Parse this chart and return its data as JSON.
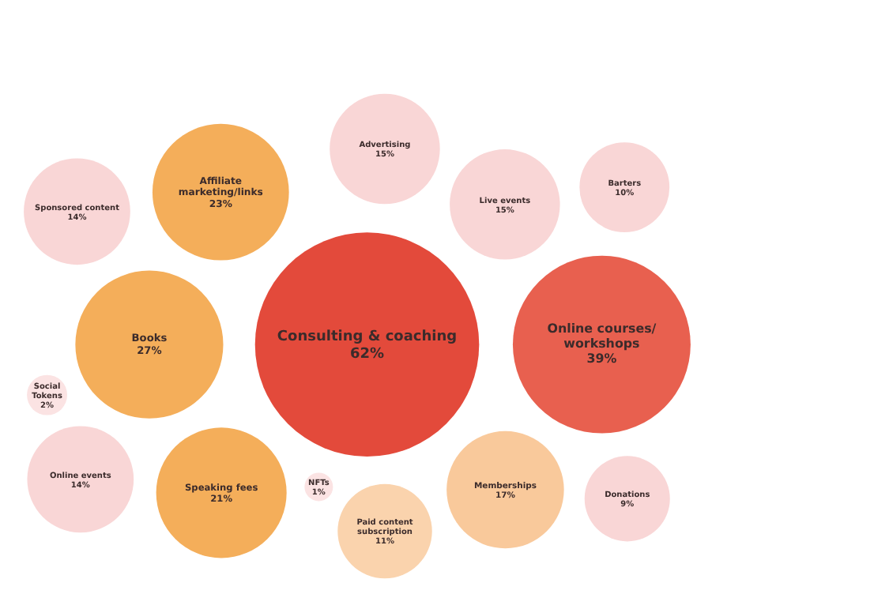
{
  "chart_data": {
    "type": "other",
    "categories": [
      "Consulting & coaching",
      "Online courses/ workshops",
      "Books",
      "Affiliate marketing/links",
      "Speaking fees",
      "Memberships",
      "Live events",
      "Advertising",
      "Online events",
      "Sponsored content",
      "Paid content subscription",
      "Barters",
      "Donations",
      "Social Tokens",
      "NFTs"
    ],
    "values": [
      62,
      39,
      27,
      23,
      21,
      17,
      15,
      15,
      14,
      14,
      11,
      10,
      9,
      2,
      1
    ],
    "value_labels": [
      "62%",
      "39%",
      "27%",
      "23%",
      "21%",
      "17%",
      "15%",
      "15%",
      "14%",
      "14%",
      "11%",
      "10%",
      "9%",
      "2%",
      "1%"
    ],
    "colors": [
      "#e34a3b",
      "#e8604f",
      "#f4ae5a",
      "#f4ae5a",
      "#f4ae5a",
      "#f9c99b",
      "#f9d6d6",
      "#f9d6d6",
      "#f9d6d6",
      "#f9d6d6",
      "#fad3ad",
      "#f9d6d6",
      "#f9d6d6",
      "#fbe3e3",
      "#fbe3e3"
    ]
  }
}
